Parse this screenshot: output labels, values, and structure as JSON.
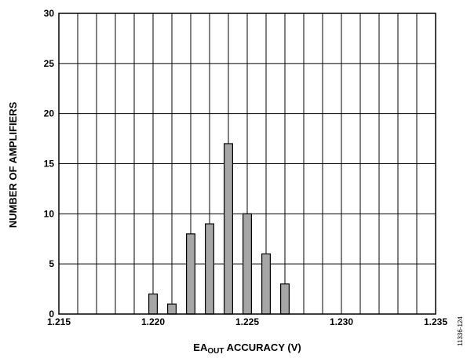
{
  "chart_data": {
    "type": "bar",
    "xlabel_main": "EA",
    "xlabel_sub": "OUT",
    "xlabel_rest": " ACCURACY (V)",
    "ylabel": "NUMBER OF AMPLIFIERS",
    "xlim": [
      1.215,
      1.235
    ],
    "ylim": [
      0,
      30
    ],
    "x_ticks": [
      1.215,
      1.22,
      1.225,
      1.23,
      1.235
    ],
    "x_tick_labels": [
      "1.215",
      "1.220",
      "1.225",
      "1.230",
      "1.235"
    ],
    "y_ticks": [
      0,
      5,
      10,
      15,
      20,
      25,
      30
    ],
    "y_tick_labels": [
      "0",
      "5",
      "10",
      "15",
      "20",
      "25",
      "30"
    ],
    "x_grid_step": 0.001,
    "grid": true,
    "bar_color": "#a6a6a6",
    "x": [
      1.22,
      1.221,
      1.222,
      1.223,
      1.224,
      1.225,
      1.226,
      1.227
    ],
    "values": [
      2,
      1,
      8,
      9,
      17,
      10,
      6,
      3
    ]
  },
  "figure_id": "11336-124"
}
